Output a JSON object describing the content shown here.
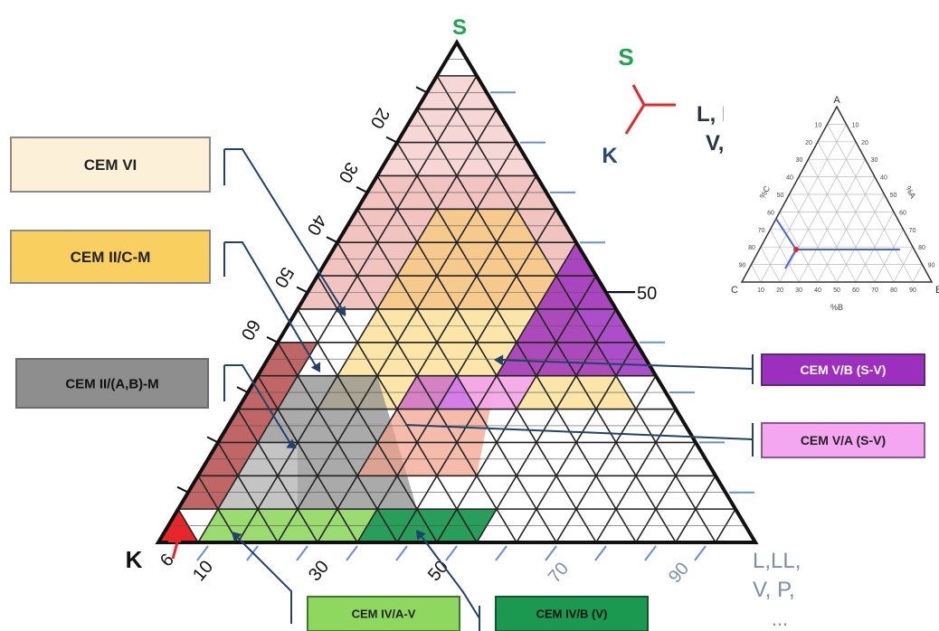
{
  "vertices": {
    "top": "S",
    "left": "K",
    "right_lines": [
      "L,LL,",
      "V, P,",
      "..."
    ]
  },
  "legend": {
    "s": "S",
    "k": "K",
    "lines": [
      "L, LL,",
      "V, P,",
      "..."
    ],
    "colors": {
      "s": "#1aa64a",
      "k": "#2c4a6e",
      "stem": "#e8262a",
      "text": "#2a3340"
    }
  },
  "left_ticks": [
    "20",
    "30",
    "40",
    "50",
    "60"
  ],
  "bottom_ticks": [
    "6",
    "10",
    "30",
    "50",
    "70",
    "90"
  ],
  "right_tick": "50",
  "labels": {
    "cem_vi": "CEM VI",
    "cem_ii_c_m": "CEM II/C-M",
    "cem_ii_ab_m": "CEM II/(A,B)-M",
    "cem_vb": "CEM V/B (S-V)",
    "cem_va": "CEM V/A (S-V)",
    "cem_iva": "CEM IV/A-V",
    "cem_ivb": "CEM IV/B (V)"
  },
  "inset": {
    "top": "A",
    "left": "C",
    "right": "B",
    "bottom_axis": "%B",
    "left_axis": "%C",
    "right_axis": "%A",
    "ticks": [
      "10",
      "20",
      "30",
      "40",
      "50",
      "60",
      "70",
      "80",
      "90"
    ]
  },
  "colors": {
    "frame": "#111111",
    "grid": "#222222",
    "axis_label": "#7d8fa8",
    "vertex_s": "#1aa64a",
    "cem_vi": "#fdf0d8",
    "cem_ii_c_m": "#f9d060",
    "cem_ii_ab_m": "#8e8e8e",
    "cem_vb": "#9d2fbf",
    "cem_va": "#f4a6f0",
    "cem_iva": "#8fd860",
    "cem_ivb": "#1b9950",
    "connector": "#22426a"
  }
}
